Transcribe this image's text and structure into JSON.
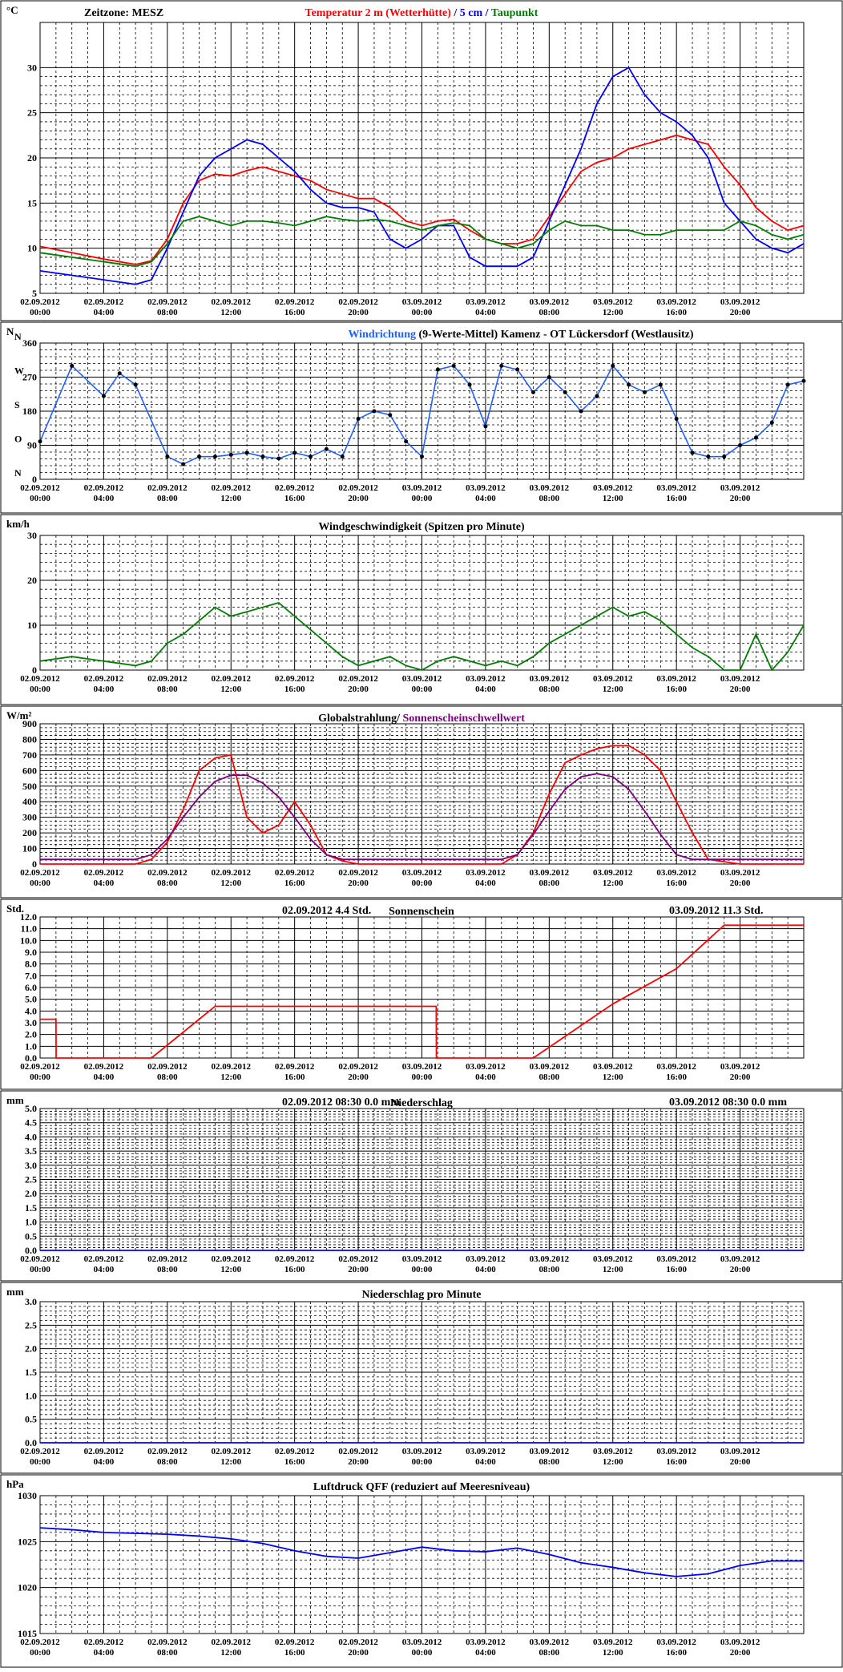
{
  "x_ticks": [
    {
      "date": "02.09.2012",
      "time": "00:00"
    },
    {
      "date": "02.09.2012",
      "time": "04:00"
    },
    {
      "date": "02.09.2012",
      "time": "08:00"
    },
    {
      "date": "02.09.2012",
      "time": "12:00"
    },
    {
      "date": "02.09.2012",
      "time": "16:00"
    },
    {
      "date": "02.09.2012",
      "time": "20:00"
    },
    {
      "date": "03.09.2012",
      "time": "00:00"
    },
    {
      "date": "03.09.2012",
      "time": "04:00"
    },
    {
      "date": "03.09.2012",
      "time": "08:00"
    },
    {
      "date": "03.09.2012",
      "time": "12:00"
    },
    {
      "date": "03.09.2012",
      "time": "16:00"
    },
    {
      "date": "03.09.2012",
      "time": "20:00"
    }
  ],
  "colors": {
    "temperature": "#ff0000",
    "soil_5cm": "#0000ff",
    "dewpoint": "#008000",
    "wind_dir_mean": "#2060ff",
    "wind_dir_raw": "#000000",
    "wind_speed": "#008000",
    "radiation": "#ff0000",
    "sun_threshold": "#800080",
    "sunshine": "#ff0000",
    "precip": "#0000ff",
    "pressure": "#0000ff"
  },
  "panels": [
    {
      "id": "temperature",
      "unit": "°C",
      "header_left": "Zeitzone: MESZ",
      "title_parts": [
        {
          "text": "Temperatur 2 m (Wetterhütte)",
          "color": "#ff0000"
        },
        {
          "text": "  /  ",
          "color": "#000080"
        },
        {
          "text": "5 cm",
          "color": "#0000ff"
        },
        {
          "text": " / ",
          "color": "#000080"
        },
        {
          "text": "Taupunkt",
          "color": "#008000"
        }
      ],
      "y_ticks": [
        "5",
        "10",
        "15",
        "20",
        "25",
        "30"
      ]
    },
    {
      "id": "wind_direction",
      "unit": "N",
      "title_parts": [
        {
          "text": "Windrichtung",
          "color": "#2060ff"
        },
        {
          "text": " (9-Werte-Mittel)",
          "color": "#000000"
        },
        {
          "text": "          Kamenz - OT Lückersdorf (Westlausitz)",
          "color": "#000000"
        }
      ],
      "y_ticks": [
        "0",
        "90",
        "180",
        "270",
        "360"
      ],
      "dir_labels": [
        "N",
        "O",
        "S",
        "W",
        "N"
      ]
    },
    {
      "id": "wind_speed",
      "unit": "km/h",
      "title_parts": [
        {
          "text": "Windgeschwindigkeit (Spitzen pro Minute)",
          "color": "#000000"
        }
      ],
      "y_ticks": [
        "0",
        "10",
        "20",
        "30"
      ]
    },
    {
      "id": "radiation",
      "unit": "W/m²",
      "title_parts": [
        {
          "text": "Globalstrahlung/ ",
          "color": "#000000"
        },
        {
          "text": "Sonnenscheinschwellwert",
          "color": "#800080"
        }
      ],
      "y_ticks": [
        "0",
        "100",
        "200",
        "300",
        "400",
        "500",
        "600",
        "700",
        "800",
        "900"
      ]
    },
    {
      "id": "sunshine",
      "unit": "Std.",
      "title_parts": [
        {
          "text": "Sonnenschein",
          "color": "#000000"
        }
      ],
      "annotations": [
        {
          "text": "02.09.2012       4.4      Std."
        },
        {
          "text": "03.09.2012       11.3      Std."
        }
      ],
      "y_ticks": [
        "0.0",
        "1.0",
        "2.0",
        "3.0",
        "4.0",
        "5.0",
        "6.0",
        "7.0",
        "8.0",
        "9.0",
        "10.0",
        "11.0",
        "12.0"
      ]
    },
    {
      "id": "precip",
      "unit": "mm",
      "title_parts": [
        {
          "text": "Niederschlag",
          "color": "#000000"
        }
      ],
      "annotations": [
        {
          "text": "02.09.2012 08:30         0.0   mm"
        },
        {
          "text": "03.09.2012 08:30         0.0   mm"
        }
      ],
      "y_ticks": [
        "0.0",
        "0.5",
        "1.0",
        "1.5",
        "2.0",
        "2.5",
        "3.0",
        "3.5",
        "4.0",
        "4.5",
        "5.0"
      ]
    },
    {
      "id": "precip_min",
      "unit": "mm",
      "title_parts": [
        {
          "text": "Niederschlag pro Minute",
          "color": "#000000"
        }
      ],
      "y_ticks": [
        "0.0",
        "0.5",
        "1.0",
        "1.5",
        "2.0",
        "2.5",
        "3.0"
      ]
    },
    {
      "id": "pressure",
      "unit": "hPa",
      "title_parts": [
        {
          "text": "Luftdruck QFF (reduziert auf Meeresniveau)",
          "color": "#000000"
        }
      ],
      "y_ticks": [
        "1015",
        "1020",
        "1025",
        "1030"
      ]
    }
  ],
  "chart_data": [
    {
      "type": "line",
      "title": "Temperatur 2 m (Wetterhütte) / 5 cm / Taupunkt",
      "ylabel": "°C",
      "ylim": [
        5,
        35
      ],
      "x": [
        0,
        2,
        4,
        6,
        7,
        8,
        9,
        10,
        11,
        12,
        13,
        14,
        15,
        16,
        17,
        18,
        19,
        20,
        21,
        22,
        23,
        24,
        25,
        26,
        27,
        28,
        29,
        30,
        31,
        32,
        33,
        34,
        35,
        36,
        37,
        38,
        39,
        40,
        41,
        42,
        43,
        44,
        45,
        46,
        47,
        48
      ],
      "series": [
        {
          "name": "Temperatur 2 m (Wetterhütte)",
          "color": "#ff0000",
          "values": [
            10.2,
            9.5,
            8.8,
            8.2,
            8.6,
            11,
            15,
            17.5,
            18.2,
            18.0,
            18.6,
            19,
            18.5,
            18,
            17.5,
            16.5,
            16,
            15.5,
            15.5,
            14.5,
            13,
            12.5,
            13,
            13.2,
            12,
            11,
            10.5,
            10.5,
            11,
            13.5,
            16,
            18.5,
            19.5,
            20,
            21,
            21.5,
            22,
            22.5,
            22,
            21.5,
            19,
            17,
            14.5,
            13,
            12,
            12.5
          ]
        },
        {
          "name": "5 cm",
          "color": "#0000ff",
          "values": [
            7.5,
            7,
            6.5,
            6,
            6.5,
            10,
            14,
            18,
            20,
            21,
            22,
            21.5,
            20,
            18.5,
            16.5,
            15,
            14.5,
            14.5,
            14,
            11,
            10,
            11,
            12.5,
            12.5,
            9,
            8,
            8,
            8,
            9,
            13,
            17,
            21,
            26,
            29,
            30,
            27,
            25,
            24,
            22.5,
            20,
            15,
            13,
            11,
            10,
            9.5,
            10.5
          ]
        },
        {
          "name": "Taupunkt",
          "color": "#008000",
          "values": [
            9.5,
            9,
            8.5,
            8,
            8.5,
            10.5,
            13,
            13.5,
            13,
            12.5,
            13,
            13,
            12.8,
            12.5,
            13,
            13.5,
            13.2,
            13,
            13.2,
            13,
            12.5,
            12,
            12.5,
            12.8,
            12.5,
            11,
            10.5,
            10,
            10.5,
            12,
            13,
            12.5,
            12.5,
            12,
            12,
            11.5,
            11.5,
            12,
            12,
            12,
            12,
            13,
            12.5,
            11.5,
            11,
            11.5
          ]
        }
      ]
    },
    {
      "type": "scatter",
      "title": "Windrichtung (9-Werte-Mittel)",
      "ylabel": "N",
      "ylim": [
        0,
        360
      ],
      "x": [
        0,
        2,
        4,
        5,
        6,
        8,
        9,
        10,
        11,
        12,
        13,
        14,
        15,
        16,
        17,
        18,
        19,
        20,
        21,
        22,
        23,
        24,
        25,
        26,
        27,
        28,
        29,
        30,
        31,
        32,
        33,
        34,
        35,
        36,
        37,
        38,
        39,
        40,
        41,
        42,
        43,
        44,
        45,
        46,
        47,
        48
      ],
      "series": [
        {
          "name": "Windrichtung (9-Werte-Mittel)",
          "color": "#2060ff",
          "values": [
            100,
            300,
            220,
            280,
            250,
            60,
            40,
            60,
            60,
            65,
            70,
            60,
            55,
            70,
            60,
            80,
            60,
            160,
            180,
            170,
            100,
            60,
            290,
            300,
            250,
            140,
            300,
            290,
            230,
            270,
            230,
            180,
            220,
            300,
            250,
            230,
            250,
            160,
            70,
            60,
            60,
            90,
            110,
            150,
            250,
            260
          ]
        }
      ]
    },
    {
      "type": "line",
      "title": "Windgeschwindigkeit (Spitzen pro Minute)",
      "ylabel": "km/h",
      "ylim": [
        0,
        30
      ],
      "x": [
        0,
        2,
        4,
        6,
        7,
        8,
        9,
        10,
        11,
        12,
        13,
        14,
        15,
        16,
        17,
        18,
        19,
        20,
        21,
        22,
        23,
        24,
        25,
        26,
        27,
        28,
        29,
        30,
        31,
        32,
        33,
        34,
        35,
        36,
        37,
        38,
        39,
        40,
        41,
        42,
        43,
        44,
        45,
        46,
        47,
        48
      ],
      "series": [
        {
          "name": "Windgeschwindigkeit",
          "color": "#008000",
          "values": [
            2,
            3,
            2,
            1,
            2,
            6,
            8,
            11,
            14,
            12,
            13,
            14,
            15,
            12,
            9,
            6,
            3,
            1,
            2,
            3,
            1,
            0,
            2,
            3,
            2,
            1,
            2,
            1,
            3,
            6,
            8,
            10,
            12,
            14,
            12,
            13,
            11,
            8,
            5,
            3,
            0,
            0,
            8,
            0,
            4,
            10
          ]
        }
      ]
    },
    {
      "type": "line",
      "title": "Globalstrahlung/ Sonnenscheinschwellwert",
      "ylabel": "W/m²",
      "ylim": [
        0,
        900
      ],
      "x": [
        0,
        6,
        7,
        8,
        9,
        10,
        11,
        12,
        13,
        14,
        15,
        16,
        17,
        18,
        19,
        20,
        22,
        24,
        29,
        30,
        31,
        32,
        33,
        34,
        35,
        36,
        37,
        38,
        39,
        40,
        41,
        42,
        44,
        48
      ],
      "series": [
        {
          "name": "Globalstrahlung",
          "color": "#ff0000",
          "values": [
            0,
            0,
            30,
            140,
            350,
            600,
            680,
            700,
            300,
            200,
            250,
            400,
            250,
            60,
            20,
            0,
            0,
            0,
            0,
            60,
            200,
            450,
            650,
            700,
            740,
            760,
            760,
            700,
            600,
            400,
            200,
            30,
            0,
            0
          ]
        },
        {
          "name": "Sonnenscheinschwellwert",
          "color": "#800080",
          "values": [
            30,
            30,
            60,
            160,
            300,
            430,
            530,
            570,
            570,
            520,
            430,
            300,
            160,
            60,
            30,
            30,
            30,
            30,
            30,
            60,
            190,
            340,
            480,
            560,
            580,
            560,
            480,
            340,
            190,
            60,
            30,
            30,
            30,
            30
          ]
        }
      ]
    },
    {
      "type": "line",
      "title": "Sonnenschein",
      "ylabel": "Std.",
      "ylim": [
        0,
        12
      ],
      "x": [
        0,
        1,
        1.01,
        7,
        11,
        17,
        24.9,
        24.91,
        31,
        36,
        40,
        43,
        48
      ],
      "series": [
        {
          "name": "Sonnenschein",
          "color": "#ff0000",
          "values": [
            3.3,
            3.3,
            0,
            0,
            4.4,
            4.4,
            4.4,
            0,
            0,
            4.6,
            7.6,
            11.3,
            11.3
          ]
        }
      ]
    },
    {
      "type": "line",
      "title": "Niederschlag",
      "ylabel": "mm",
      "ylim": [
        0,
        5
      ],
      "x": [
        0,
        48
      ],
      "series": [
        {
          "name": "Niederschlag",
          "color": "#0000ff",
          "values": [
            0,
            0
          ]
        }
      ]
    },
    {
      "type": "line",
      "title": "Niederschlag pro Minute",
      "ylabel": "mm",
      "ylim": [
        0,
        3
      ],
      "x": [
        0,
        48
      ],
      "series": [
        {
          "name": "Niederschlag pro Minute",
          "color": "#0000ff",
          "values": [
            0,
            0
          ]
        }
      ]
    },
    {
      "type": "line",
      "title": "Luftdruck QFF (reduziert auf Meeresniveau)",
      "ylabel": "hPa",
      "ylim": [
        1015,
        1030
      ],
      "x": [
        0,
        2,
        4,
        6,
        8,
        10,
        12,
        14,
        16,
        18,
        20,
        22,
        24,
        26,
        28,
        30,
        32,
        34,
        36,
        38,
        40,
        42,
        44,
        46,
        48
      ],
      "series": [
        {
          "name": "Luftdruck QFF",
          "color": "#0000ff",
          "values": [
            1026.5,
            1026.3,
            1026.0,
            1025.9,
            1025.8,
            1025.6,
            1025.3,
            1024.8,
            1024.0,
            1023.4,
            1023.2,
            1023.8,
            1024.4,
            1024.0,
            1023.9,
            1024.3,
            1023.6,
            1022.7,
            1022.2,
            1021.6,
            1021.2,
            1021.5,
            1022.4,
            1022.9,
            1022.9
          ]
        }
      ]
    }
  ]
}
